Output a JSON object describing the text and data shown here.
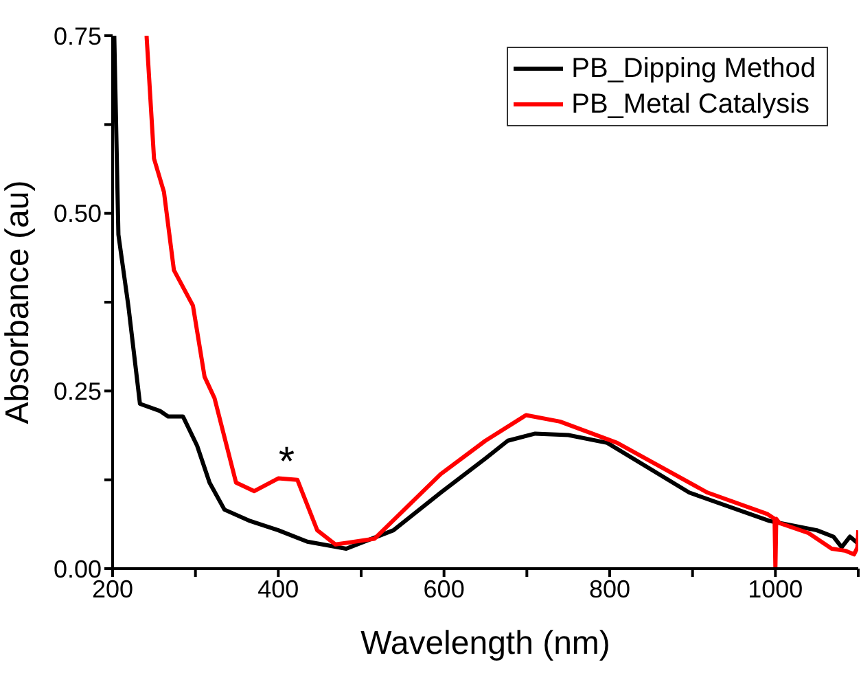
{
  "chart_data": {
    "type": "line",
    "xlabel": "Wavelength (nm)",
    "ylabel": "Absorbance (au)",
    "xlim": [
      200,
      1100
    ],
    "ylim": [
      0,
      0.75
    ],
    "xticks": [
      200,
      {
        "value": 300,
        "label": null
      },
      400,
      {
        "value": 500,
        "label": null
      },
      600,
      {
        "value": 700,
        "label": null
      },
      800,
      {
        "value": 900,
        "label": null
      },
      1000,
      {
        "value": 1100,
        "label": null
      }
    ],
    "yticks": [
      {
        "value": 0,
        "label": "0.00"
      },
      {
        "value": 0.125,
        "label": null
      },
      {
        "value": 0.25,
        "label": "0.25"
      },
      {
        "value": 0.375,
        "label": null
      },
      {
        "value": 0.5,
        "label": "0.50"
      },
      {
        "value": 0.625,
        "label": null
      },
      {
        "value": 0.75,
        "label": "0.75"
      }
    ],
    "legend": "top right",
    "marker": "none",
    "line_style": "solid",
    "annotations": [
      {
        "text": "*",
        "x": 410,
        "y": 0.135
      }
    ],
    "series": [
      {
        "name": "PB_Dipping Method",
        "color": "#000000",
        "x": [
          202,
          207,
          219,
          233,
          257,
          267,
          285,
          302,
          317,
          335,
          366,
          400,
          435,
          482,
          539,
          596,
          650,
          677,
          710,
          750,
          797,
          896,
          993,
          1050,
          1070,
          1080,
          1090,
          1100
        ],
        "values": [
          0.75,
          0.47,
          0.37,
          0.232,
          0.222,
          0.214,
          0.214,
          0.173,
          0.121,
          0.083,
          0.067,
          0.054,
          0.038,
          0.028,
          0.054,
          0.107,
          0.155,
          0.18,
          0.19,
          0.188,
          0.177,
          0.107,
          0.067,
          0.054,
          0.045,
          0.03,
          0.045,
          0.035
        ]
      },
      {
        "name": "PB_Metal Catalysis",
        "color": "#ff0000",
        "x": [
          241,
          250,
          262,
          274,
          297,
          311,
          323,
          349,
          371,
          400,
          423,
          447,
          469,
          516,
          596,
          650,
          699,
          740,
          809,
          918,
          990,
          999,
          1000,
          1001,
          1005,
          1040,
          1068,
          1085,
          1095,
          1099,
          1100
        ],
        "values": [
          0.75,
          0.577,
          0.53,
          0.42,
          0.37,
          0.27,
          0.24,
          0.121,
          0.109,
          0.127,
          0.125,
          0.054,
          0.034,
          0.042,
          0.133,
          0.18,
          0.216,
          0.207,
          0.177,
          0.107,
          0.077,
          0.07,
          0.0,
          0.07,
          0.064,
          0.05,
          0.028,
          0.025,
          0.02,
          0.03,
          0.054
        ]
      }
    ]
  }
}
